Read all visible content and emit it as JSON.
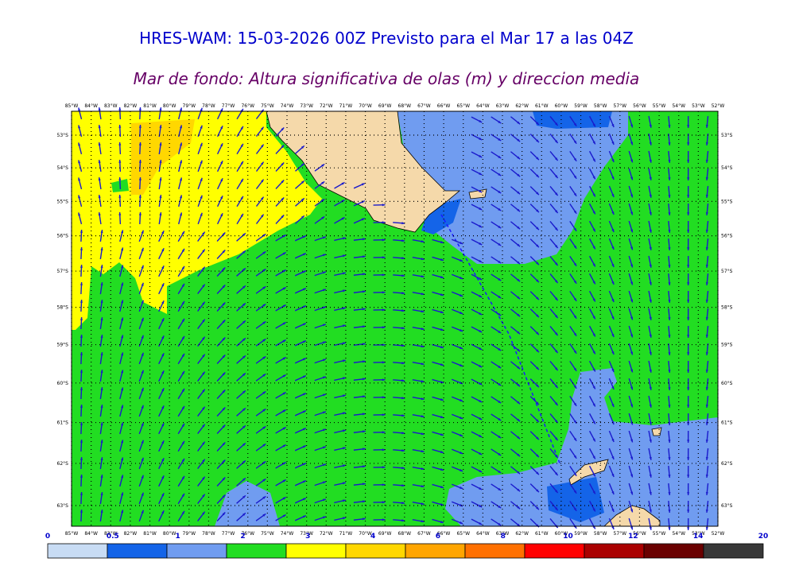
{
  "title": "HRES-WAM: 15-03-2026 00Z Previsto para el Mar 17 a las 04Z",
  "subtitle": "Mar de fondo: Altura significativa de olas (m) y direccion media",
  "map": {
    "lon_labels": [
      "85°W",
      "84°W",
      "83°W",
      "82°W",
      "81°W",
      "80°W",
      "79°W",
      "78°W",
      "77°W",
      "76°W",
      "75°W",
      "74°W",
      "73°W",
      "72°W",
      "71°W",
      "70°W",
      "69°W",
      "68°W",
      "67°W",
      "66°W",
      "65°W",
      "64°W",
      "63°W",
      "62°W",
      "61°W",
      "60°W",
      "59°W",
      "58°W",
      "57°W",
      "56°W",
      "55°W",
      "54°W",
      "53°W",
      "52°W"
    ],
    "lat_labels": [
      "53°S",
      "54°S",
      "55°S",
      "56°S",
      "57°S",
      "58°S",
      "59°S",
      "60°S",
      "61°S",
      "62°S",
      "63°S"
    ]
  },
  "colorbar": {
    "labels": [
      "0",
      "0.5",
      "1",
      "2",
      "3",
      "4",
      "6",
      "8",
      "10",
      "12",
      "14",
      "20"
    ],
    "colors": [
      "#c8dcf4",
      "#1464e8",
      "#709cf0",
      "#22dd22",
      "#ffff00",
      "#ffd700",
      "#ffa500",
      "#ff7000",
      "#ff0000",
      "#aa0000",
      "#6a0000",
      "#383838"
    ]
  }
}
